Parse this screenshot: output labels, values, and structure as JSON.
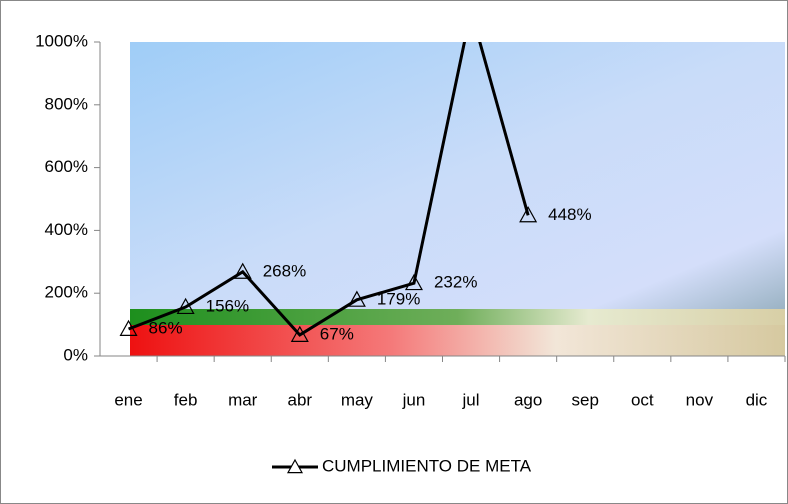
{
  "chart_data": {
    "type": "line",
    "categories": [
      "ene",
      "feb",
      "mar",
      "abr",
      "may",
      "jun",
      "jul",
      "ago",
      "sep",
      "oct",
      "nov",
      "dic"
    ],
    "series": [
      {
        "name": "CUMPLIMIENTO DE META",
        "color": "#000000",
        "values": [
          86,
          156,
          268,
          67,
          179,
          232,
          1100,
          448,
          null,
          null,
          null,
          null
        ],
        "value_labels": [
          "86%",
          "156%",
          "268%",
          "67%",
          "179%",
          "232%",
          null,
          "448%",
          null,
          null,
          null,
          null
        ]
      }
    ],
    "ylim": [
      0,
      1000
    ],
    "yticks": [
      {
        "value": 0,
        "label": "0%"
      },
      {
        "value": 200,
        "label": "200%"
      },
      {
        "value": 400,
        "label": "400%"
      },
      {
        "value": 600,
        "label": "600%"
      },
      {
        "value": 800,
        "label": "800%"
      },
      {
        "value": 1000,
        "label": "1000%"
      }
    ],
    "legend": "bottom"
  }
}
